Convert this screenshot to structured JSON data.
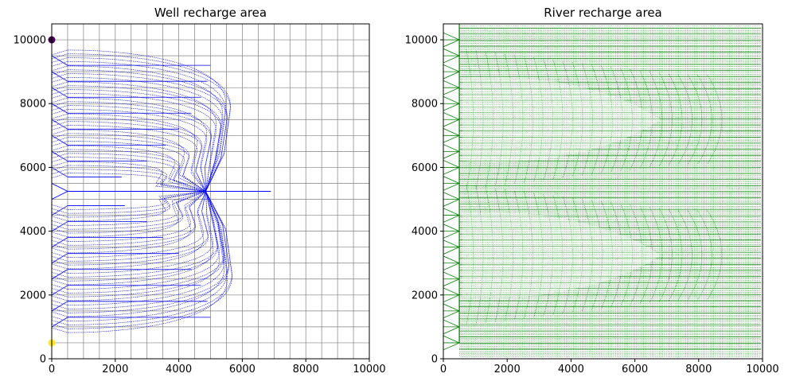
{
  "chart_data": [
    {
      "type": "line",
      "title": "Well recharge area",
      "xlabel": "",
      "ylabel": "",
      "xlim": [
        0,
        10000
      ],
      "ylim": [
        0,
        10500
      ],
      "xticks": [
        0,
        2000,
        4000,
        6000,
        8000,
        10000
      ],
      "yticks": [
        0,
        2000,
        4000,
        6000,
        8000,
        10000
      ],
      "grid": true,
      "grid_spacing": 500,
      "grid_color": "#808080",
      "line_color": "#0000ff",
      "well": {
        "x": 4850,
        "y": 5250
      },
      "markers": [
        {
          "x": 0,
          "y": 10000,
          "color": "#440154"
        },
        {
          "x": 0,
          "y": 500,
          "color": "#fde725"
        }
      ],
      "outlet": {
        "from_x": 500,
        "to_x": 6900,
        "y": 5250
      },
      "pathlines": [
        {
          "y0": 9500,
          "xmax": 5700,
          "reach": 5000
        },
        {
          "y0": 9000,
          "xmax": 5600,
          "reach": 4900
        },
        {
          "y0": 8500,
          "xmax": 5400,
          "reach": 4700
        },
        {
          "y0": 8000,
          "xmax": 5100,
          "reach": 4400
        },
        {
          "y0": 7500,
          "xmax": 4800,
          "reach": 4000
        },
        {
          "y0": 7000,
          "xmax": 4400,
          "reach": 3600
        },
        {
          "y0": 6500,
          "xmax": 4100,
          "reach": 3000
        },
        {
          "y0": 6000,
          "xmax": 3700,
          "reach": 2200
        },
        {
          "y0": 4500,
          "xmax": 3800,
          "reach": 2300
        },
        {
          "y0": 4000,
          "xmax": 4200,
          "reach": 3000
        },
        {
          "y0": 3500,
          "xmax": 4600,
          "reach": 3500
        },
        {
          "y0": 3000,
          "xmax": 5000,
          "reach": 4000
        },
        {
          "y0": 2500,
          "xmax": 5300,
          "reach": 4400
        },
        {
          "y0": 2000,
          "xmax": 5500,
          "reach": 4700
        },
        {
          "y0": 1500,
          "xmax": 5650,
          "reach": 4900
        },
        {
          "y0": 1000,
          "xmax": 5750,
          "reach": 5000
        }
      ]
    },
    {
      "type": "line",
      "title": "River recharge area",
      "xlabel": "",
      "ylabel": "",
      "xlim": [
        0,
        10000
      ],
      "ylim": [
        0,
        10500
      ],
      "xticks": [
        0,
        2000,
        4000,
        6000,
        8000,
        10000
      ],
      "yticks": [
        0,
        2000,
        4000,
        6000,
        8000,
        10000
      ],
      "grid": false,
      "line_color": "#008000",
      "river_x": 500,
      "extent_x": 9950,
      "stagnation": [
        {
          "y": 7500,
          "xmin": 5500,
          "extent": 2200
        },
        {
          "y": 3250,
          "xmin": 5500,
          "extent": 2200
        }
      ]
    }
  ]
}
